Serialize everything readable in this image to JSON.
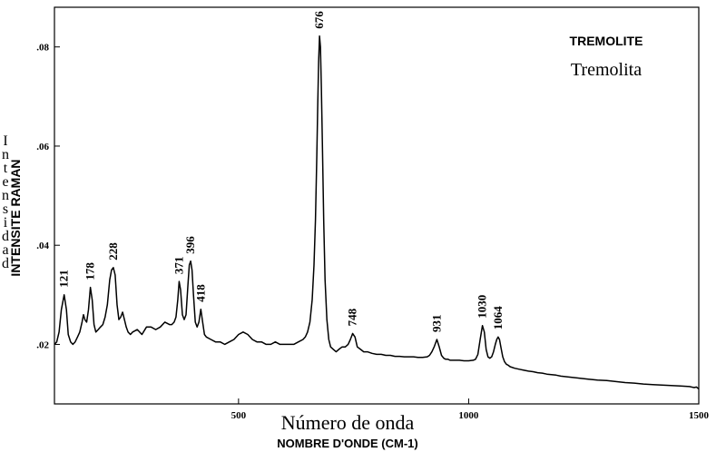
{
  "chart_data": {
    "type": "line",
    "legend": {
      "label_fr": "TREMOLITE",
      "label_es": "Tremolita",
      "placement": "top-right"
    },
    "xlabel_es": "Número de onda",
    "xlabel_fr": "NOMBRE D'ONDE (CM-1)",
    "ylabel_fr": "INTENSITE RAMAN",
    "ylabel_es": "Intensidad",
    "xlim": [
      100,
      1500
    ],
    "ylim": [
      0.008,
      0.088
    ],
    "x_ticks": [
      {
        "value": 500,
        "label": "500"
      },
      {
        "value": 1000,
        "label": "1000"
      },
      {
        "value": 1500,
        "label": "1500"
      }
    ],
    "y_ticks": [
      {
        "value": 0.02,
        "label": ".02"
      },
      {
        "value": 0.04,
        "label": ".04"
      },
      {
        "value": 0.06,
        "label": ".06"
      },
      {
        "value": 0.08,
        "label": ".08"
      }
    ],
    "peak_labels": [
      {
        "x": 121,
        "y": 0.03,
        "label": "121"
      },
      {
        "x": 178,
        "y": 0.0315,
        "label": "178"
      },
      {
        "x": 228,
        "y": 0.0355,
        "label": "228"
      },
      {
        "x": 371,
        "y": 0.0327,
        "label": "371"
      },
      {
        "x": 396,
        "y": 0.0368,
        "label": "396"
      },
      {
        "x": 418,
        "y": 0.0271,
        "label": "418"
      },
      {
        "x": 676,
        "y": 0.0822,
        "label": "676"
      },
      {
        "x": 748,
        "y": 0.0222,
        "label": "748"
      },
      {
        "x": 931,
        "y": 0.021,
        "label": "931"
      },
      {
        "x": 1030,
        "y": 0.0238,
        "label": "1030"
      },
      {
        "x": 1064,
        "y": 0.0215,
        "label": "1064"
      }
    ],
    "series": [
      {
        "color": "#000000",
        "x": [
          100,
          105,
          110,
          115,
          121,
          126,
          130,
          135,
          140,
          145,
          150,
          155,
          160,
          163,
          166,
          170,
          174,
          178,
          182,
          186,
          190,
          195,
          200,
          205,
          210,
          215,
          220,
          224,
          228,
          232,
          236,
          240,
          244,
          248,
          252,
          256,
          260,
          265,
          270,
          280,
          290,
          300,
          310,
          320,
          330,
          340,
          350,
          355,
          360,
          364,
          368,
          371,
          374,
          378,
          382,
          386,
          390,
          393,
          396,
          399,
          402,
          406,
          410,
          414,
          418,
          422,
          426,
          430,
          440,
          450,
          460,
          470,
          480,
          490,
          500,
          510,
          520,
          530,
          540,
          550,
          560,
          570,
          580,
          590,
          600,
          610,
          620,
          630,
          640,
          645,
          650,
          655,
          660,
          664,
          667,
          670,
          672,
          674,
          676,
          678,
          680,
          682,
          685,
          688,
          692,
          696,
          700,
          706,
          712,
          718,
          725,
          732,
          738,
          743,
          748,
          753,
          758,
          765,
          772,
          780,
          790,
          800,
          810,
          820,
          830,
          840,
          850,
          860,
          870,
          880,
          890,
          900,
          910,
          915,
          920,
          925,
          931,
          936,
          941,
          946,
          950,
          955,
          960,
          970,
          980,
          990,
          1000,
          1010,
          1015,
          1020,
          1025,
          1030,
          1034,
          1038,
          1042,
          1046,
          1050,
          1054,
          1058,
          1061,
          1064,
          1067,
          1070,
          1074,
          1078,
          1082,
          1086,
          1090,
          1100,
          1110,
          1120,
          1130,
          1140,
          1150,
          1160,
          1170,
          1180,
          1190,
          1200,
          1220,
          1240,
          1260,
          1280,
          1300,
          1320,
          1340,
          1360,
          1380,
          1400,
          1420,
          1440,
          1460,
          1480,
          1490,
          1495,
          1500
        ],
        "y": [
          0.02,
          0.0205,
          0.0225,
          0.027,
          0.03,
          0.027,
          0.022,
          0.0205,
          0.02,
          0.0205,
          0.0215,
          0.0225,
          0.0245,
          0.026,
          0.025,
          0.0245,
          0.027,
          0.0315,
          0.029,
          0.024,
          0.0225,
          0.023,
          0.0235,
          0.024,
          0.0255,
          0.028,
          0.033,
          0.035,
          0.0355,
          0.034,
          0.028,
          0.025,
          0.0255,
          0.0265,
          0.025,
          0.0235,
          0.0225,
          0.022,
          0.0225,
          0.023,
          0.022,
          0.0235,
          0.0235,
          0.023,
          0.0235,
          0.0245,
          0.024,
          0.024,
          0.0245,
          0.0255,
          0.029,
          0.0327,
          0.031,
          0.026,
          0.025,
          0.026,
          0.032,
          0.036,
          0.0368,
          0.035,
          0.03,
          0.0245,
          0.0235,
          0.0245,
          0.0271,
          0.0245,
          0.022,
          0.0215,
          0.021,
          0.0205,
          0.0205,
          0.02,
          0.0205,
          0.021,
          0.022,
          0.0225,
          0.022,
          0.021,
          0.0205,
          0.0205,
          0.02,
          0.02,
          0.0205,
          0.02,
          0.02,
          0.02,
          0.02,
          0.0205,
          0.021,
          0.0215,
          0.0225,
          0.0245,
          0.029,
          0.036,
          0.045,
          0.058,
          0.068,
          0.077,
          0.0822,
          0.08,
          0.072,
          0.061,
          0.045,
          0.033,
          0.025,
          0.021,
          0.0195,
          0.019,
          0.0185,
          0.019,
          0.0195,
          0.0195,
          0.02,
          0.021,
          0.0222,
          0.0215,
          0.0195,
          0.019,
          0.0185,
          0.0185,
          0.0182,
          0.018,
          0.018,
          0.0178,
          0.0178,
          0.0176,
          0.0176,
          0.0175,
          0.0175,
          0.0175,
          0.0174,
          0.0174,
          0.0175,
          0.0178,
          0.0185,
          0.0195,
          0.021,
          0.0195,
          0.0178,
          0.0172,
          0.017,
          0.017,
          0.0168,
          0.0168,
          0.0168,
          0.0167,
          0.0167,
          0.0168,
          0.017,
          0.018,
          0.021,
          0.0238,
          0.0225,
          0.019,
          0.0175,
          0.0172,
          0.0175,
          0.0185,
          0.02,
          0.021,
          0.0215,
          0.021,
          0.0195,
          0.0175,
          0.0165,
          0.016,
          0.0158,
          0.0155,
          0.0152,
          0.015,
          0.0148,
          0.0146,
          0.0145,
          0.0143,
          0.0142,
          0.014,
          0.0139,
          0.0138,
          0.0136,
          0.0134,
          0.0132,
          0.013,
          0.0128,
          0.0127,
          0.0125,
          0.0123,
          0.0122,
          0.012,
          0.0119,
          0.0118,
          0.0117,
          0.0116,
          0.0115,
          0.0113,
          0.0114,
          0.011
        ]
      }
    ]
  }
}
